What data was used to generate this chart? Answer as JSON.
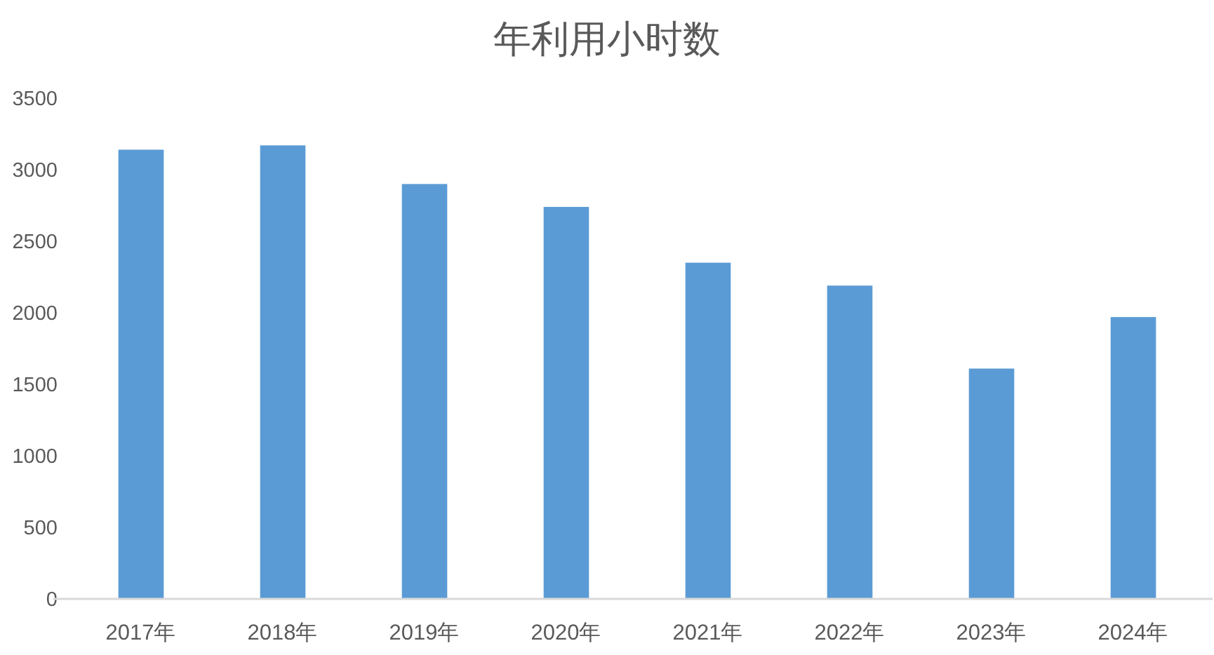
{
  "chart_data": {
    "type": "bar",
    "title": "年利用小时数",
    "categories": [
      "2017年",
      "2018年",
      "2019年",
      "2020年",
      "2021年",
      "2022年",
      "2023年",
      "2024年"
    ],
    "values": [
      3140,
      3170,
      2900,
      2740,
      2350,
      2190,
      1610,
      1970
    ],
    "color": "#5b9bd5",
    "ylim": [
      0,
      3500
    ],
    "yticks": [
      0,
      500,
      1000,
      1500,
      2000,
      2500,
      3000,
      3500
    ]
  }
}
